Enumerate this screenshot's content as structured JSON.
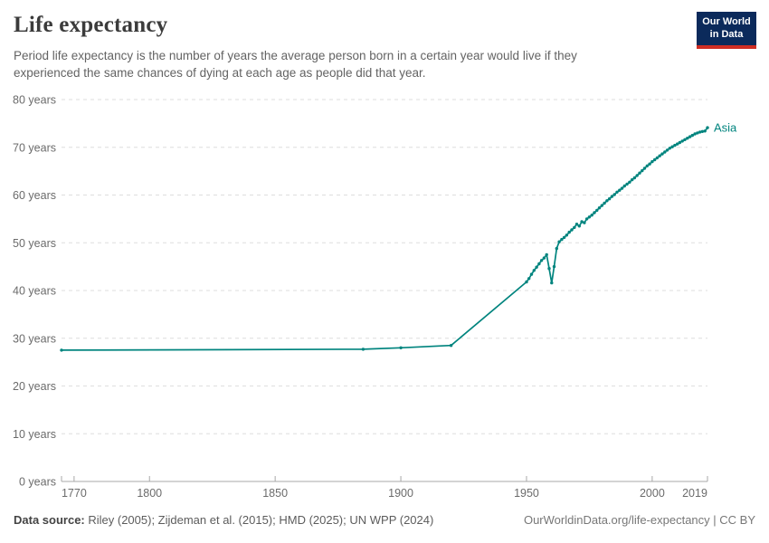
{
  "header": {
    "title": "Life expectancy",
    "subtitle": "Period life expectancy is the number of years the average person born in a certain year would live if they experienced the same chances of dying at each age as people did that year.",
    "logo": {
      "line1": "Our World",
      "line2": "in Data"
    }
  },
  "footer": {
    "source_label": "Data source:",
    "source_text": " Riley (2005); Zijdeman et al. (2015); HMD (2025); UN WPP (2024)",
    "link_text": "OurWorldinData.org/life-expectancy",
    "separator": " | ",
    "license_text": "CC BY"
  },
  "colors": {
    "series_teal": "#00847E",
    "gridline": "#dedede",
    "axis": "#a8a8a8",
    "tick_text": "#6b6b6b",
    "logo_navy": "#0b2a5b",
    "logo_red": "#cf2d23"
  },
  "chart_data": {
    "type": "line",
    "title": "Life expectancy",
    "xlabel": "",
    "ylabel": "",
    "y_unit": "years",
    "x_domain": [
      1765,
      2022
    ],
    "y_domain": [
      0,
      80
    ],
    "x_ticks": [
      1770,
      1800,
      1850,
      1900,
      1950,
      2000,
      2019
    ],
    "y_ticks": [
      0,
      10,
      20,
      30,
      40,
      50,
      60,
      70,
      80
    ],
    "grid": "dashed-horizontal",
    "legend_position": "end-of-line-label",
    "series": [
      {
        "name": "Asia",
        "color": "#00847E",
        "points": [
          [
            1765,
            27.5
          ],
          [
            1885,
            27.7
          ],
          [
            1900,
            28.0
          ],
          [
            1920,
            28.5
          ],
          [
            1950,
            41.8
          ],
          [
            1951,
            42.5
          ],
          [
            1952,
            43.4
          ],
          [
            1953,
            44.2
          ],
          [
            1954,
            44.9
          ],
          [
            1955,
            45.6
          ],
          [
            1956,
            46.3
          ],
          [
            1957,
            46.8
          ],
          [
            1958,
            47.5
          ],
          [
            1959,
            44.6
          ],
          [
            1960,
            41.6
          ],
          [
            1961,
            45.0
          ],
          [
            1962,
            48.8
          ],
          [
            1963,
            50.2
          ],
          [
            1964,
            50.7
          ],
          [
            1965,
            51.1
          ],
          [
            1966,
            51.6
          ],
          [
            1967,
            52.2
          ],
          [
            1968,
            52.7
          ],
          [
            1969,
            53.2
          ],
          [
            1970,
            53.9
          ],
          [
            1971,
            53.5
          ],
          [
            1972,
            54.4
          ],
          [
            1973,
            54.2
          ],
          [
            1974,
            55.0
          ],
          [
            1975,
            55.4
          ],
          [
            1976,
            55.8
          ],
          [
            1977,
            56.3
          ],
          [
            1978,
            56.8
          ],
          [
            1979,
            57.3
          ],
          [
            1980,
            57.8
          ],
          [
            1981,
            58.3
          ],
          [
            1982,
            58.8
          ],
          [
            1983,
            59.2
          ],
          [
            1984,
            59.7
          ],
          [
            1985,
            60.1
          ],
          [
            1986,
            60.6
          ],
          [
            1987,
            61.0
          ],
          [
            1988,
            61.4
          ],
          [
            1989,
            61.9
          ],
          [
            1990,
            62.3
          ],
          [
            1991,
            62.7
          ],
          [
            1992,
            63.2
          ],
          [
            1993,
            63.6
          ],
          [
            1994,
            64.1
          ],
          [
            1995,
            64.6
          ],
          [
            1996,
            65.1
          ],
          [
            1997,
            65.6
          ],
          [
            1998,
            66.1
          ],
          [
            1999,
            66.5
          ],
          [
            2000,
            67.0
          ],
          [
            2001,
            67.4
          ],
          [
            2002,
            67.8
          ],
          [
            2003,
            68.2
          ],
          [
            2004,
            68.6
          ],
          [
            2005,
            69.0
          ],
          [
            2006,
            69.4
          ],
          [
            2007,
            69.8
          ],
          [
            2008,
            70.1
          ],
          [
            2009,
            70.4
          ],
          [
            2010,
            70.7
          ],
          [
            2011,
            71.0
          ],
          [
            2012,
            71.3
          ],
          [
            2013,
            71.6
          ],
          [
            2014,
            71.9
          ],
          [
            2015,
            72.2
          ],
          [
            2016,
            72.5
          ],
          [
            2017,
            72.8
          ],
          [
            2018,
            73.0
          ],
          [
            2019,
            73.2
          ],
          [
            2020,
            73.3
          ],
          [
            2021,
            73.4
          ],
          [
            2022,
            74.1
          ]
        ]
      }
    ]
  }
}
